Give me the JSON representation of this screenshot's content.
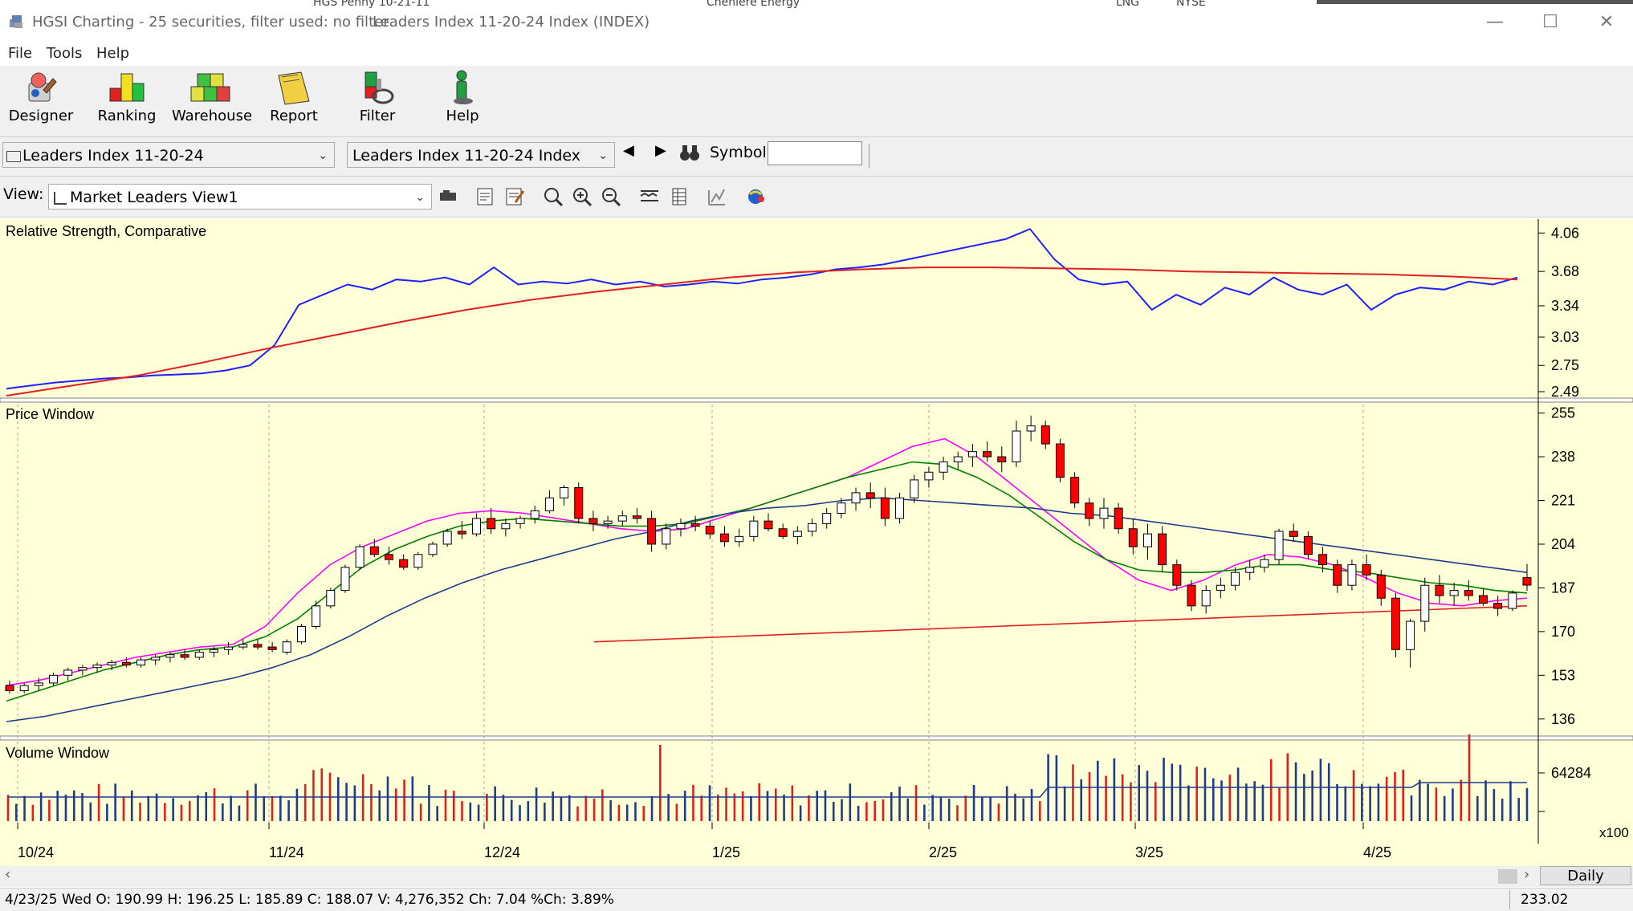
{
  "window": {
    "title": "HGSI Charting - 25 securities, filter used: no filter",
    "document_title": "Leaders Index 11-20-24 Index (INDEX)",
    "background_tabs": [
      "HGS Penny 10-21-11",
      "Cheniere Energy",
      "LNG",
      "NYSE"
    ],
    "controls": {
      "minimize": "—",
      "maximize": "☐",
      "close": "✕"
    }
  },
  "menu": [
    "File",
    "Tools",
    "Help"
  ],
  "toolbar": [
    {
      "label": "Designer",
      "icon": "designer-icon"
    },
    {
      "label": "Ranking",
      "icon": "ranking-icon"
    },
    {
      "label": "Warehouse",
      "icon": "warehouse-icon"
    },
    {
      "label": "Report",
      "icon": "report-icon"
    },
    {
      "label": "Filter",
      "icon": "filter-icon"
    },
    {
      "label": "Help",
      "icon": "help-person-icon"
    }
  ],
  "selectors": {
    "list": "Leaders Index 11-20-24",
    "security": "Leaders Index 11-20-24 Index",
    "symbol_label": "Symbol:",
    "symbol_value": ""
  },
  "view": {
    "label": "View:",
    "value": "Market Leaders View1"
  },
  "panes": {
    "rs_title": "Relative Strength, Comparative",
    "price_title": "Price Window",
    "volume_title": "Volume Window",
    "volume_multiplier": "x100",
    "period": "Daily"
  },
  "colors": {
    "chart_bg": "#ffffd8",
    "up_candle": "#ffffff",
    "down_candle": "#ff0000",
    "ma_fast": "#ff00ff",
    "ma_mid": "#008000",
    "ma_slow": "#1f3c8a",
    "ma_long": "#e02020",
    "rs_line": "#2020ff",
    "volume_up": "#1f3c8a",
    "volume_down": "#e02020"
  },
  "status": {
    "ohlc": "4/23/25 Wed O: 190.99 H: 196.25 L: 185.89 C: 188.07 V: 4,276,352 Ch: 7.04 %Ch: 3.89%",
    "price_readout": "233.02"
  },
  "chart_data": [
    {
      "type": "line",
      "title": "Relative Strength, Comparative",
      "y_ticks": [
        4.06,
        3.68,
        3.34,
        3.03,
        2.75,
        2.49
      ],
      "ylim": [
        2.45,
        4.15
      ],
      "series": [
        {
          "role": "rs",
          "values": [
            2.52,
            2.55,
            2.58,
            2.6,
            2.62,
            2.63,
            2.65,
            2.66,
            2.67,
            2.7,
            2.75,
            2.95,
            3.35,
            3.45,
            3.55,
            3.5,
            3.6,
            3.58,
            3.62,
            3.55,
            3.72,
            3.55,
            3.58,
            3.56,
            3.6,
            3.55,
            3.58,
            3.53,
            3.55,
            3.58,
            3.56,
            3.6,
            3.62,
            3.65,
            3.7,
            3.72,
            3.75,
            3.8,
            3.85,
            3.9,
            3.95,
            4.0,
            4.1,
            3.8,
            3.6,
            3.55,
            3.58,
            3.3,
            3.45,
            3.35,
            3.52,
            3.45,
            3.62,
            3.5,
            3.45,
            3.55,
            3.3,
            3.45,
            3.52,
            3.5,
            3.58,
            3.55,
            3.62
          ]
        },
        {
          "role": "ma",
          "values": [
            2.45,
            2.55,
            2.65,
            2.78,
            2.92,
            3.05,
            3.18,
            3.3,
            3.4,
            3.48,
            3.55,
            3.62,
            3.67,
            3.7,
            3.72,
            3.72,
            3.71,
            3.7,
            3.68,
            3.67,
            3.66,
            3.65,
            3.63,
            3.6
          ]
        }
      ]
    },
    {
      "type": "candlestick",
      "title": "Price Window",
      "y_ticks": [
        255,
        238,
        221,
        204,
        187,
        170,
        153,
        136
      ],
      "ylim": [
        130,
        258
      ],
      "x_labels": [
        "10/24",
        "11/24",
        "12/24",
        "1/25",
        "2/25",
        "3/25",
        "4/25"
      ],
      "candles_approx": [
        [
          149,
          151,
          146,
          147
        ],
        [
          147,
          150,
          146,
          149
        ],
        [
          149,
          152,
          147,
          150
        ],
        [
          150,
          154,
          149,
          153
        ],
        [
          153,
          156,
          151,
          155
        ],
        [
          155,
          157,
          153,
          156
        ],
        [
          156,
          158,
          154,
          157
        ],
        [
          157,
          159,
          155,
          158
        ],
        [
          158,
          160,
          156,
          157
        ],
        [
          157,
          160,
          156,
          159
        ],
        [
          159,
          161,
          157,
          160
        ],
        [
          160,
          162,
          158,
          161
        ],
        [
          161,
          163,
          159,
          160
        ],
        [
          160,
          163,
          159,
          162
        ],
        [
          162,
          164,
          160,
          163
        ],
        [
          163,
          166,
          161,
          164
        ],
        [
          164,
          167,
          163,
          165
        ],
        [
          165,
          167,
          163,
          164
        ],
        [
          164,
          166,
          162,
          163
        ],
        [
          162,
          167,
          161,
          166
        ],
        [
          166,
          173,
          165,
          172
        ],
        [
          172,
          182,
          171,
          180
        ],
        [
          180,
          187,
          179,
          186
        ],
        [
          186,
          196,
          185,
          195
        ],
        [
          195,
          204,
          194,
          203
        ],
        [
          203,
          206,
          199,
          200
        ],
        [
          200,
          203,
          196,
          198
        ],
        [
          198,
          200,
          194,
          195
        ],
        [
          195,
          201,
          194,
          200
        ],
        [
          200,
          205,
          199,
          204
        ],
        [
          204,
          210,
          203,
          209
        ],
        [
          209,
          213,
          206,
          208
        ],
        [
          208,
          216,
          207,
          214
        ],
        [
          214,
          218,
          208,
          210
        ],
        [
          210,
          214,
          207,
          212
        ],
        [
          212,
          215,
          210,
          214
        ],
        [
          214,
          219,
          212,
          217
        ],
        [
          217,
          225,
          216,
          222
        ],
        [
          222,
          227,
          219,
          226
        ],
        [
          226,
          228,
          212,
          214
        ],
        [
          214,
          217,
          209,
          212
        ],
        [
          212,
          215,
          210,
          213
        ],
        [
          213,
          217,
          211,
          215
        ],
        [
          215,
          218,
          212,
          214
        ],
        [
          214,
          217,
          201,
          204
        ],
        [
          204,
          212,
          202,
          210
        ],
        [
          210,
          214,
          207,
          212
        ],
        [
          212,
          215,
          209,
          211
        ],
        [
          211,
          213,
          206,
          208
        ],
        [
          208,
          211,
          203,
          205
        ],
        [
          205,
          210,
          203,
          207
        ],
        [
          207,
          215,
          205,
          213
        ],
        [
          213,
          216,
          209,
          210
        ],
        [
          210,
          212,
          206,
          207
        ],
        [
          207,
          211,
          204,
          209
        ],
        [
          209,
          214,
          207,
          212
        ],
        [
          212,
          218,
          210,
          216
        ],
        [
          216,
          222,
          214,
          220
        ],
        [
          220,
          226,
          217,
          224
        ],
        [
          224,
          228,
          218,
          222
        ],
        [
          222,
          226,
          211,
          214
        ],
        [
          214,
          224,
          212,
          222
        ],
        [
          222,
          231,
          220,
          229
        ],
        [
          229,
          234,
          226,
          232
        ],
        [
          232,
          238,
          229,
          236
        ],
        [
          236,
          240,
          233,
          238
        ],
        [
          238,
          243,
          234,
          240
        ],
        [
          240,
          244,
          236,
          238
        ],
        [
          238,
          242,
          232,
          236
        ],
        [
          236,
          252,
          234,
          248
        ],
        [
          248,
          254,
          244,
          250
        ],
        [
          250,
          252,
          241,
          243
        ],
        [
          243,
          245,
          228,
          230
        ],
        [
          230,
          232,
          218,
          220
        ],
        [
          220,
          222,
          211,
          214
        ],
        [
          214,
          222,
          210,
          218
        ],
        [
          218,
          220,
          208,
          210
        ],
        [
          210,
          214,
          200,
          203
        ],
        [
          203,
          212,
          198,
          208
        ],
        [
          208,
          211,
          193,
          196
        ],
        [
          196,
          198,
          186,
          188
        ],
        [
          188,
          190,
          178,
          180
        ],
        [
          180,
          188,
          177,
          186
        ],
        [
          186,
          191,
          183,
          188
        ],
        [
          188,
          195,
          186,
          193
        ],
        [
          193,
          198,
          190,
          195
        ],
        [
          195,
          200,
          193,
          198
        ],
        [
          198,
          210,
          196,
          209
        ],
        [
          209,
          212,
          205,
          207
        ],
        [
          207,
          209,
          198,
          200
        ],
        [
          200,
          203,
          193,
          196
        ],
        [
          196,
          198,
          185,
          188
        ],
        [
          188,
          198,
          186,
          196
        ],
        [
          196,
          200,
          190,
          192
        ],
        [
          192,
          194,
          180,
          183
        ],
        [
          183,
          185,
          160,
          163
        ],
        [
          163,
          175,
          156,
          174
        ],
        [
          174,
          191,
          170,
          188
        ],
        [
          188,
          192,
          181,
          184
        ],
        [
          184,
          189,
          180,
          186
        ],
        [
          186,
          190,
          182,
          184
        ],
        [
          184,
          187,
          180,
          181
        ],
        [
          181,
          184,
          176,
          179
        ],
        [
          179,
          186,
          178,
          185
        ],
        [
          190.99,
          196.25,
          185.89,
          188.07
        ]
      ],
      "series": [
        {
          "role": "ma_fast",
          "values": [
            149,
            151,
            154,
            157,
            160,
            162,
            164,
            165,
            172,
            185,
            196,
            203,
            208,
            213,
            216,
            217,
            216,
            214,
            212,
            210,
            209,
            210,
            214,
            218,
            222,
            226,
            230,
            236,
            242,
            245,
            238,
            228,
            218,
            208,
            198,
            190,
            186,
            190,
            196,
            200,
            199,
            196,
            191,
            185,
            181,
            180,
            182,
            183
          ]
        },
        {
          "role": "ma_mid",
          "values": [
            143,
            147,
            151,
            155,
            158,
            161,
            163,
            164,
            168,
            175,
            185,
            195,
            202,
            207,
            211,
            213,
            214,
            213,
            212,
            211,
            211,
            212,
            215,
            218,
            222,
            226,
            230,
            233,
            236,
            235,
            230,
            223,
            214,
            205,
            198,
            194,
            193,
            193,
            194,
            196,
            196,
            194,
            193,
            191,
            189,
            188,
            186,
            185
          ]
        },
        {
          "role": "ma_slow",
          "values": [
            135,
            137,
            140,
            143,
            146,
            149,
            152,
            156,
            161,
            168,
            176,
            183,
            189,
            194,
            198,
            202,
            206,
            209,
            213,
            216,
            218,
            219,
            221,
            222,
            221,
            220,
            219,
            218,
            216,
            215,
            213,
            211,
            209,
            207,
            205,
            203,
            201,
            199,
            197,
            195,
            193
          ]
        },
        {
          "role": "ma_long",
          "values": [
            166,
            167,
            168,
            169,
            170,
            171,
            172,
            173,
            174,
            175,
            176,
            177,
            178,
            179,
            180
          ]
        }
      ]
    },
    {
      "type": "bar",
      "title": "Volume Window",
      "y_ticks": [
        64284
      ],
      "unit": "x100"
    }
  ]
}
